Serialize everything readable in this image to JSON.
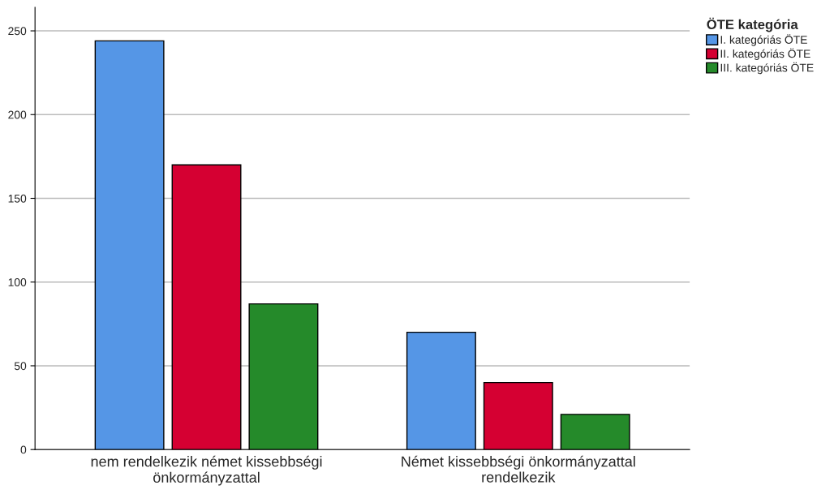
{
  "chart_data": {
    "type": "bar",
    "categories": [
      "nem rendelkezik német kissebbségi\nönkormányzattal",
      "Német kissebbségi önkormányzattal\nrendelkezik"
    ],
    "series": [
      {
        "name": "I. kategóriás ÖTE",
        "color": "#5596e6",
        "values": [
          244,
          70
        ]
      },
      {
        "name": "II. kategóriás ÖTE",
        "color": "#d50032",
        "values": [
          170,
          40
        ]
      },
      {
        "name": "III. kategóriás ÖTE",
        "color": "#258a2a",
        "values": [
          87,
          21
        ]
      }
    ],
    "legend_title": "ÖTE kategória",
    "legend": "top right",
    "ylim": [
      0,
      264
    ],
    "yticks": [
      0,
      50,
      100,
      150,
      200,
      250
    ],
    "grid": "y"
  }
}
